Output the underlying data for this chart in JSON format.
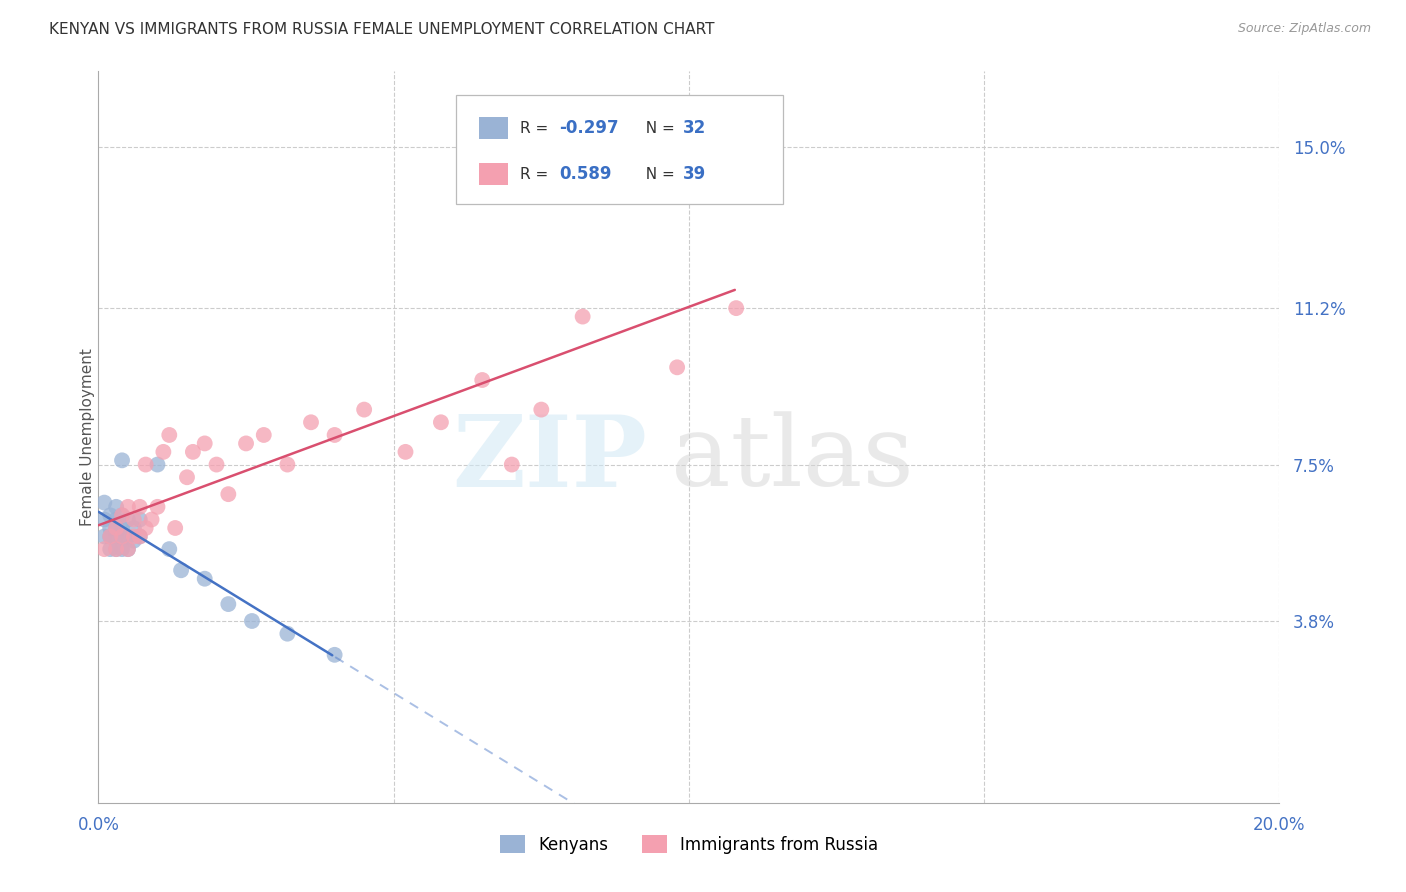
{
  "title": "KENYAN VS IMMIGRANTS FROM RUSSIA FEMALE UNEMPLOYMENT CORRELATION CHART",
  "source": "Source: ZipAtlas.com",
  "ylabel": "Female Unemployment",
  "yticks": [
    0.038,
    0.075,
    0.112,
    0.15
  ],
  "ytick_labels": [
    "3.8%",
    "7.5%",
    "11.2%",
    "15.0%"
  ],
  "xlim": [
    0.0,
    0.2
  ],
  "ylim": [
    -0.005,
    0.168
  ],
  "legend_label1": "Kenyans",
  "legend_label2": "Immigrants from Russia",
  "color_kenyan": "#9ab3d5",
  "color_russia": "#f4a0b0",
  "line_color_kenyan": "#4472c4",
  "line_color_russia": "#d94f6f",
  "background": "#ffffff",
  "kenyan_x": [
    0.001,
    0.001,
    0.001,
    0.002,
    0.002,
    0.002,
    0.002,
    0.003,
    0.003,
    0.003,
    0.003,
    0.003,
    0.004,
    0.004,
    0.004,
    0.004,
    0.004,
    0.005,
    0.005,
    0.005,
    0.006,
    0.006,
    0.007,
    0.007,
    0.01,
    0.012,
    0.014,
    0.018,
    0.022,
    0.026,
    0.032,
    0.04
  ],
  "kenyan_y": [
    0.062,
    0.058,
    0.066,
    0.055,
    0.058,
    0.06,
    0.063,
    0.055,
    0.058,
    0.06,
    0.062,
    0.065,
    0.055,
    0.058,
    0.06,
    0.063,
    0.076,
    0.055,
    0.058,
    0.062,
    0.057,
    0.06,
    0.058,
    0.062,
    0.075,
    0.055,
    0.05,
    0.048,
    0.042,
    0.038,
    0.035,
    0.03
  ],
  "russia_x": [
    0.001,
    0.002,
    0.003,
    0.003,
    0.004,
    0.004,
    0.005,
    0.005,
    0.006,
    0.006,
    0.007,
    0.007,
    0.008,
    0.008,
    0.009,
    0.01,
    0.011,
    0.012,
    0.013,
    0.015,
    0.016,
    0.018,
    0.02,
    0.022,
    0.025,
    0.028,
    0.032,
    0.036,
    0.04,
    0.045,
    0.052,
    0.058,
    0.065,
    0.07,
    0.075,
    0.082,
    0.09,
    0.098,
    0.108
  ],
  "russia_y": [
    0.055,
    0.058,
    0.055,
    0.06,
    0.058,
    0.063,
    0.055,
    0.065,
    0.058,
    0.062,
    0.058,
    0.065,
    0.06,
    0.075,
    0.062,
    0.065,
    0.078,
    0.082,
    0.06,
    0.072,
    0.078,
    0.08,
    0.075,
    0.068,
    0.08,
    0.082,
    0.075,
    0.085,
    0.082,
    0.088,
    0.078,
    0.085,
    0.095,
    0.075,
    0.088,
    0.11,
    0.143,
    0.098,
    0.112
  ]
}
